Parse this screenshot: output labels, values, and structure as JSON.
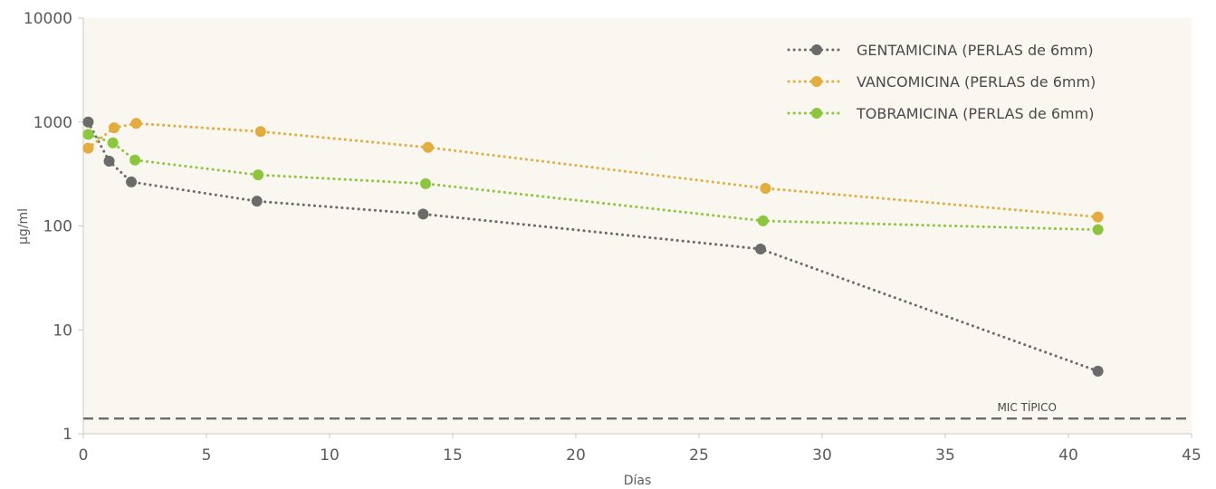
{
  "chart_data": {
    "type": "line",
    "title": "",
    "xlabel": "Días",
    "ylabel": "µg/ml",
    "xlim": [
      0,
      45
    ],
    "ylim": [
      1,
      10000
    ],
    "y_scale": "log",
    "grid": false,
    "legend_position": "top-right",
    "plot_background": "#f9f7ef",
    "x_ticks": [
      "0",
      "5",
      "10",
      "15",
      "20",
      "25",
      "30",
      "35",
      "40",
      "45"
    ],
    "y_ticks": [
      "1",
      "10",
      "100",
      "1000",
      "10000"
    ],
    "series": [
      {
        "name": "GENTAMICINA (PERLAS de 6mm)",
        "color": "#6b6b6b",
        "points": [
          [
            0.2,
            1000
          ],
          [
            1.05,
            420
          ],
          [
            1.95,
            265
          ],
          [
            7.05,
            173
          ],
          [
            13.8,
            130
          ],
          [
            27.5,
            60
          ],
          [
            41.2,
            4
          ]
        ]
      },
      {
        "name": "VANCOMICINA (PERLAS de 6mm)",
        "color": "#e2ac3f",
        "points": [
          [
            0.2,
            560
          ],
          [
            1.25,
            880
          ],
          [
            2.15,
            970
          ],
          [
            7.2,
            810
          ],
          [
            14.0,
            570
          ],
          [
            27.7,
            230
          ],
          [
            41.2,
            122
          ]
        ]
      },
      {
        "name": "TOBRAMICINA (PERLAS de 6mm)",
        "color": "#8cc63f",
        "points": [
          [
            0.2,
            760
          ],
          [
            1.2,
            630
          ],
          [
            2.1,
            430
          ],
          [
            7.1,
            310
          ],
          [
            13.9,
            255
          ],
          [
            27.6,
            112
          ],
          [
            41.2,
            92
          ]
        ]
      }
    ],
    "reference_line": {
      "label": "MIC TÍPICO",
      "value": 1.4,
      "color": "#6b6b6b",
      "style": "dashed"
    }
  }
}
